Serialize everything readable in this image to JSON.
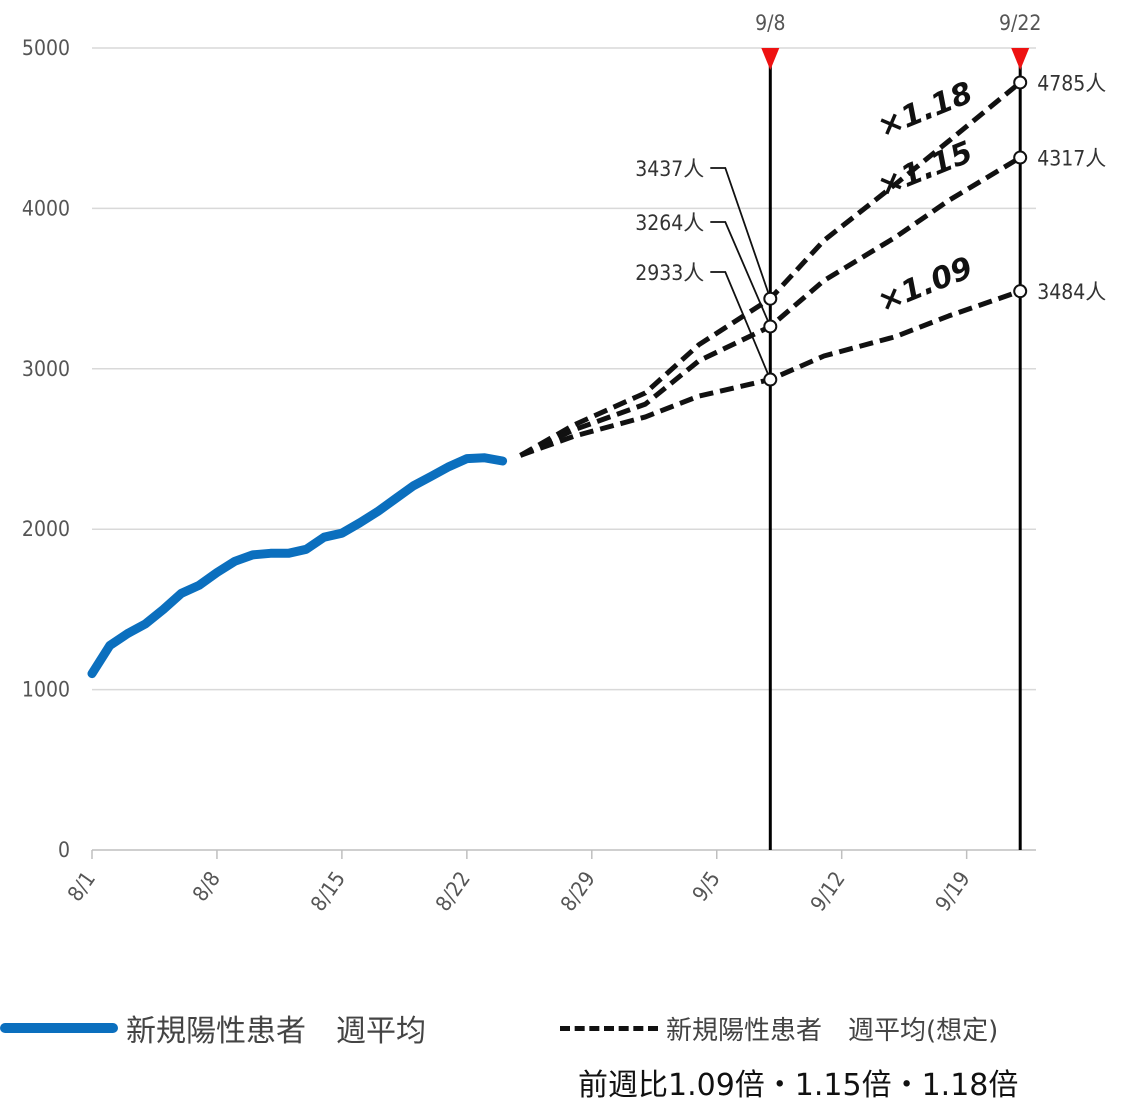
{
  "chart_data": {
    "type": "line",
    "title": "",
    "xlabel": "",
    "ylabel": "",
    "ylim": [
      0,
      5000
    ],
    "yticks": [
      0,
      1000,
      2000,
      3000,
      4000,
      5000
    ],
    "xticks": [
      "8/1",
      "8/8",
      "8/15",
      "8/22",
      "8/29",
      "9/5",
      "9/12",
      "9/19"
    ],
    "grid": "horizontal",
    "legend_position": "bottom",
    "series": [
      {
        "name": "新規陽性患者　週平均",
        "style": "solid",
        "color": "#0b6fbe",
        "x": [
          "8/1",
          "8/2",
          "8/3",
          "8/4",
          "8/5",
          "8/6",
          "8/7",
          "8/8",
          "8/9",
          "8/10",
          "8/11",
          "8/12",
          "8/13",
          "8/14",
          "8/15",
          "8/16",
          "8/17",
          "8/18",
          "8/19",
          "8/20",
          "8/21",
          "8/22",
          "8/23",
          "8/24"
        ],
        "values": [
          1100,
          1275,
          1350,
          1410,
          1500,
          1600,
          1650,
          1730,
          1800,
          1840,
          1850,
          1850,
          1875,
          1950,
          1975,
          2040,
          2110,
          2190,
          2270,
          2330,
          2390,
          2440,
          2445,
          2425
        ]
      },
      {
        "name": "新規陽性患者　週平均(想定)",
        "style": "dashed",
        "color": "#111111",
        "multiplier": "×1.18",
        "x": [
          "8/25",
          "8/28",
          "9/1",
          "9/4",
          "9/8",
          "9/11",
          "9/15",
          "9/18",
          "9/22"
        ],
        "values": [
          2460,
          2650,
          2850,
          3150,
          3437,
          3800,
          4150,
          4420,
          4785
        ]
      },
      {
        "name": "",
        "style": "dashed",
        "color": "#111111",
        "multiplier": "×1.15",
        "x": [
          "8/25",
          "8/28",
          "9/1",
          "9/4",
          "9/8",
          "9/11",
          "9/15",
          "9/18",
          "9/22"
        ],
        "values": [
          2460,
          2620,
          2780,
          3050,
          3264,
          3550,
          3820,
          4050,
          4317
        ]
      },
      {
        "name": "",
        "style": "dashed",
        "color": "#111111",
        "multiplier": "×1.09",
        "x": [
          "8/25",
          "8/28",
          "9/1",
          "9/4",
          "9/8",
          "9/11",
          "9/15",
          "9/18",
          "9/22"
        ],
        "values": [
          2460,
          2580,
          2700,
          2830,
          2933,
          3080,
          3200,
          3330,
          3484
        ]
      }
    ],
    "markers": [
      {
        "date": "9/8",
        "label": "9/8",
        "color": "#ee1111"
      },
      {
        "date": "9/22",
        "label": "9/22",
        "color": "#ee1111"
      }
    ],
    "annotations": {
      "9/8": [
        "3437人",
        "3264人",
        "2933人"
      ],
      "9/22": [
        "4785人",
        "4317人",
        "3484人"
      ]
    },
    "legend": {
      "actual_label": "新規陽性患者　週平均",
      "projection_label": "新規陽性患者　週平均(想定)",
      "projection_sub": "前週比1.09倍・1.15倍・1.18倍"
    }
  }
}
